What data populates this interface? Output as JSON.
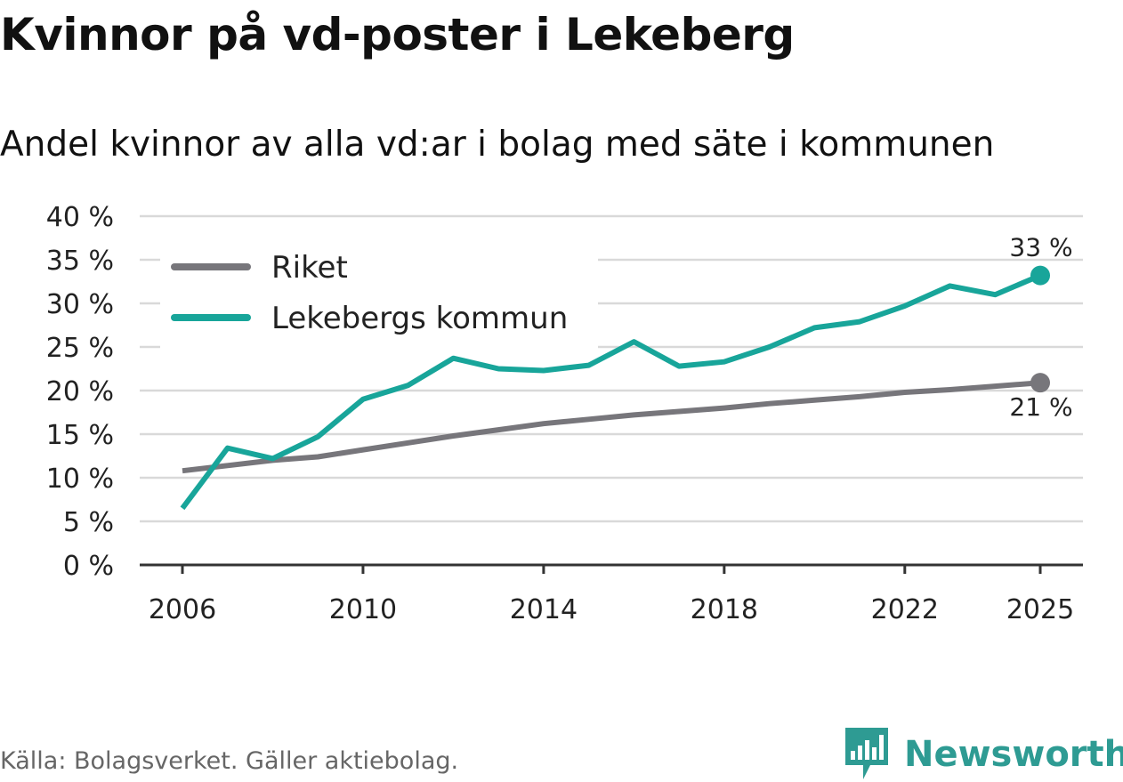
{
  "title": "Kvinnor på vd-poster i Lekeberg",
  "subtitle": "Andel kvinnor av alla vd:ar i bolag med säte i kommunen",
  "source": "Källa: Bolagsverket. Gäller aktiebolag.",
  "brand": "Newsworthy",
  "colors": {
    "riket": "#77767b",
    "lekeberg": "#18a59a",
    "grid": "#d9d9d9",
    "axis": "#333333",
    "brand": "#2e9b93"
  },
  "chart_data": {
    "type": "line",
    "title": "Kvinnor på vd-poster i Lekeberg",
    "xlabel": "",
    "ylabel": "",
    "ylim": [
      0,
      40
    ],
    "xlim": [
      2006,
      2025
    ],
    "y_ticks": [
      0,
      5,
      10,
      15,
      20,
      25,
      30,
      35,
      40
    ],
    "y_tick_labels": [
      "0 %",
      "5 %",
      "10 %",
      "15 %",
      "20 %",
      "25 %",
      "30 %",
      "35 %",
      "40 %"
    ],
    "x_ticks": [
      2006,
      2010,
      2014,
      2018,
      2022,
      2025
    ],
    "x_tick_labels": [
      "2006",
      "2010",
      "2014",
      "2018",
      "2022",
      "2025"
    ],
    "grid": true,
    "legend_position": "top-left",
    "x": [
      2006,
      2007,
      2008,
      2009,
      2010,
      2011,
      2012,
      2013,
      2014,
      2015,
      2016,
      2017,
      2018,
      2019,
      2020,
      2021,
      2022,
      2023,
      2024,
      2025
    ],
    "series": [
      {
        "name": "Riket",
        "color": "#77767b",
        "values": [
          10.8,
          11.4,
          12.0,
          12.4,
          13.2,
          14.0,
          14.8,
          15.5,
          16.2,
          16.7,
          17.2,
          17.6,
          18.0,
          18.5,
          18.9,
          19.3,
          19.8,
          20.1,
          20.5,
          20.9
        ],
        "end_label": "21 %"
      },
      {
        "name": "Lekebergs kommun",
        "color": "#18a59a",
        "values": [
          6.5,
          13.4,
          12.2,
          14.7,
          19.0,
          20.6,
          23.7,
          22.5,
          22.3,
          22.9,
          25.6,
          22.8,
          23.3,
          25.0,
          27.2,
          27.9,
          29.7,
          32.0,
          31.0,
          33.2
        ],
        "end_label": "33 %"
      }
    ]
  }
}
